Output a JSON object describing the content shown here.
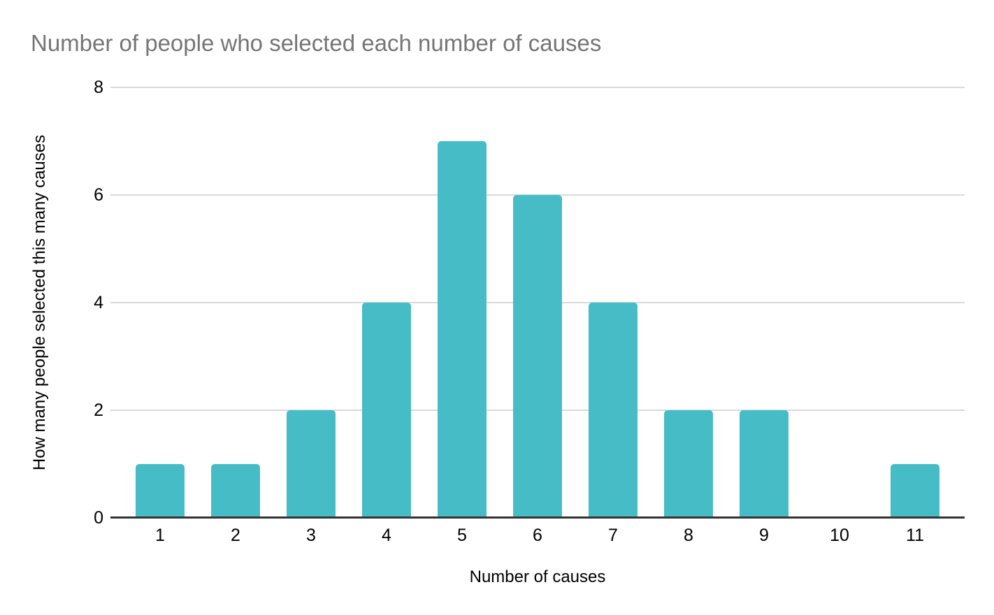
{
  "chart_data": {
    "type": "bar",
    "title": "Number of people who selected each number of causes",
    "xlabel": "Number of causes",
    "ylabel": "How many people selected this many causes",
    "categories": [
      "1",
      "2",
      "3",
      "4",
      "5",
      "6",
      "7",
      "8",
      "9",
      "10",
      "11"
    ],
    "values": [
      1,
      1,
      2,
      4,
      7,
      6,
      4,
      2,
      2,
      0,
      1
    ],
    "ylim": [
      0,
      8
    ],
    "yticks": [
      0,
      2,
      4,
      6,
      8
    ],
    "grid": "horizontal",
    "legend": "none",
    "colors": {
      "bar": "#46bdc6",
      "title_text": "#757575",
      "axis_text": "#000000",
      "gridline": "#d9d9d9",
      "axis_line": "#333333",
      "background": "#ffffff"
    }
  }
}
